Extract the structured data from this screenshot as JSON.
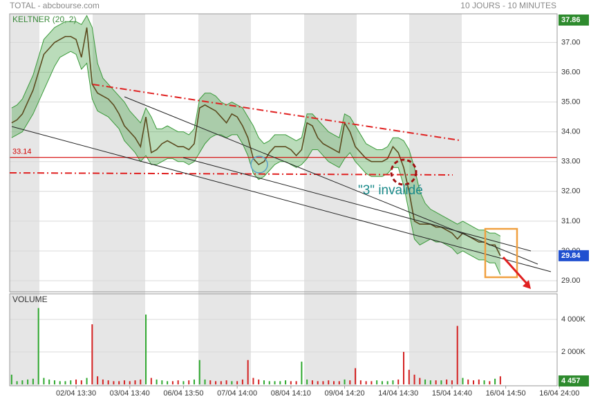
{
  "chart_data": [
    {
      "type": "line",
      "title": "TOTAL - abcbourse.com",
      "subtitle": "10 JOURS - 10 MINUTES",
      "panel_label": "KELTNER (20, 2)",
      "categories": [
        null,
        null,
        null,
        null,
        null,
        null,
        null,
        null,
        null,
        null,
        null,
        null,
        "02/04 13:30",
        null,
        null,
        null,
        null,
        null,
        null,
        null,
        null,
        null,
        "03/04 13:40",
        null,
        null,
        null,
        null,
        null,
        null,
        null,
        null,
        null,
        "06/04 13:50",
        null,
        null,
        null,
        null,
        null,
        null,
        null,
        null,
        null,
        "07/04 14:00",
        null,
        null,
        null,
        null,
        null,
        null,
        null,
        null,
        null,
        "08/04 14:10",
        null,
        null,
        null,
        null,
        null,
        null,
        null,
        null,
        null,
        "09/04 14:20",
        null,
        null,
        null,
        null,
        null,
        null,
        null,
        null,
        null,
        "14/04 14:30",
        null,
        null,
        null,
        null,
        null,
        null,
        null,
        null,
        null,
        "15/04 14:40",
        null,
        null,
        null,
        null,
        null,
        null,
        null,
        null,
        null,
        "16/04 14:50",
        null,
        null,
        null,
        null,
        null,
        null,
        null,
        null,
        null,
        "16/04 24:00"
      ],
      "values": [
        34.3,
        34.4,
        34.6,
        35.0,
        35.4,
        36.0,
        36.6,
        36.8,
        37.0,
        37.1,
        37.2,
        37.2,
        37.1,
        36.5,
        37.5,
        35.6,
        35.3,
        35.2,
        35.1,
        34.9,
        34.6,
        34.2,
        34.0,
        33.8,
        33.5,
        34.5,
        33.3,
        33.4,
        33.6,
        33.7,
        33.6,
        33.5,
        33.5,
        33.4,
        33.6,
        34.8,
        34.9,
        34.8,
        34.7,
        34.5,
        34.3,
        34.6,
        34.5,
        34.2,
        33.8,
        33.1,
        32.9,
        33.0,
        33.3,
        33.5,
        33.5,
        33.5,
        33.4,
        33.2,
        33.4,
        34.3,
        34.2,
        33.8,
        33.6,
        33.5,
        33.4,
        33.3,
        34.3,
        34.0,
        33.5,
        33.3,
        33.1,
        33.0,
        33.0,
        33.0,
        33.1,
        33.5,
        33.3,
        32.8,
        32.0,
        31.0,
        30.9,
        30.9,
        30.9,
        30.8,
        30.8,
        30.7,
        30.6,
        30.4,
        30.6,
        30.5,
        30.4,
        30.3,
        30.3,
        30.2,
        30.2,
        29.84,
        null,
        null,
        null,
        null,
        null,
        null,
        null,
        null,
        null,
        null,
        null
      ],
      "color": "#5b4a1e",
      "keltner": {
        "color": "#3a9a3a",
        "upper": [
          34.8,
          34.9,
          35.1,
          35.5,
          35.9,
          36.5,
          37.1,
          37.3,
          37.5,
          37.6,
          37.7,
          37.7,
          37.7,
          37.6,
          37.9,
          37.5,
          36.3,
          35.8,
          35.6,
          35.4,
          35.2,
          35.0,
          34.7,
          34.5,
          34.3,
          34.8,
          34.5,
          34.1,
          34.1,
          34.2,
          34.1,
          34.0,
          34.0,
          33.9,
          34.1,
          35.1,
          35.3,
          35.3,
          35.2,
          35.0,
          34.9,
          35.0,
          34.9,
          34.8,
          34.5,
          34.2,
          33.8,
          33.6,
          33.7,
          33.9,
          33.9,
          33.9,
          33.8,
          33.7,
          33.8,
          34.6,
          34.6,
          34.4,
          34.2,
          34.0,
          33.9,
          33.8,
          34.6,
          34.5,
          34.2,
          33.9,
          33.6,
          33.5,
          33.4,
          33.4,
          33.5,
          33.8,
          33.8,
          33.7,
          33.4,
          32.8,
          32.0,
          31.6,
          31.4,
          31.3,
          31.2,
          31.1,
          31.0,
          30.9,
          31.0,
          30.9,
          30.8,
          30.7,
          30.7,
          30.6,
          30.6,
          30.5,
          null,
          null,
          null,
          null,
          null,
          null,
          null,
          null,
          null,
          null,
          null
        ],
        "lower": [
          33.8,
          33.9,
          34.0,
          34.3,
          34.6,
          35.0,
          35.4,
          35.8,
          36.2,
          36.5,
          36.6,
          36.7,
          36.6,
          36.1,
          36.3,
          35.1,
          34.7,
          34.6,
          34.5,
          34.3,
          34.1,
          33.7,
          33.5,
          33.3,
          33.0,
          33.2,
          32.9,
          32.9,
          33.0,
          33.1,
          33.1,
          33.0,
          33.0,
          32.9,
          33.0,
          33.3,
          33.6,
          33.8,
          33.9,
          33.9,
          33.8,
          33.9,
          33.9,
          33.6,
          33.2,
          32.6,
          32.4,
          32.5,
          32.7,
          32.9,
          33.0,
          33.0,
          32.9,
          32.8,
          32.9,
          33.1,
          33.4,
          33.4,
          33.2,
          33.0,
          32.9,
          32.8,
          33.1,
          33.3,
          33.0,
          32.8,
          32.6,
          32.5,
          32.5,
          32.5,
          32.6,
          32.8,
          32.8,
          32.2,
          31.3,
          30.4,
          30.2,
          30.3,
          30.4,
          30.3,
          30.3,
          30.2,
          30.1,
          29.9,
          30.0,
          29.9,
          29.8,
          29.7,
          29.7,
          29.6,
          29.6,
          29.2,
          null,
          null,
          null,
          null,
          null,
          null,
          null,
          null,
          null,
          null,
          null
        ]
      },
      "ylim": [
        28.63,
        37.96
      ],
      "yticks": [
        {
          "value": 29,
          "label": "29.00"
        },
        {
          "value": 30,
          "label": "30.00"
        },
        {
          "value": 31,
          "label": "31.00"
        },
        {
          "value": 32,
          "label": "32.00"
        },
        {
          "value": 33,
          "label": "33.00"
        },
        {
          "value": 34,
          "label": "34.00"
        },
        {
          "value": 35,
          "label": "35.00"
        },
        {
          "value": 36,
          "label": "36.00"
        },
        {
          "value": 37,
          "label": "37.00"
        }
      ],
      "grid": true,
      "reference_line": {
        "value": 33.14,
        "color": "#d40000"
      },
      "high": 37.86,
      "last": 29.84,
      "annotation": "\"3\" invalidé"
    },
    {
      "type": "bar",
      "title": "VOLUME",
      "values": [
        600,
        200,
        250,
        300,
        350,
        4700,
        400,
        300,
        250,
        200,
        200,
        250,
        300,
        250,
        400,
        3700,
        500,
        300,
        250,
        200,
        200,
        250,
        200,
        250,
        300,
        4300,
        400,
        300,
        250,
        200,
        200,
        250,
        200,
        250,
        300,
        1500,
        300,
        250,
        200,
        200,
        250,
        200,
        200,
        300,
        1500,
        400,
        300,
        250,
        200,
        200,
        200,
        250,
        200,
        200,
        1400,
        300,
        250,
        200,
        200,
        250,
        200,
        200,
        300,
        250,
        1000,
        250,
        200,
        200,
        250,
        200,
        200,
        250,
        300,
        2000,
        900,
        600,
        400,
        300,
        250,
        250,
        250,
        300,
        250,
        3600,
        400,
        300,
        250,
        300,
        250,
        200,
        350,
        500,
        null,
        null,
        null,
        null,
        null,
        null,
        null,
        null,
        null,
        null,
        null
      ],
      "up_color": "#2ea82e",
      "down_color": "#d42020",
      "ylim": [
        0,
        5490
      ],
      "yticks": [
        {
          "value": 2000,
          "label": "2 000K"
        },
        {
          "value": 4000,
          "label": "4 000K"
        }
      ],
      "grid": true,
      "last_label": "4 457"
    }
  ]
}
